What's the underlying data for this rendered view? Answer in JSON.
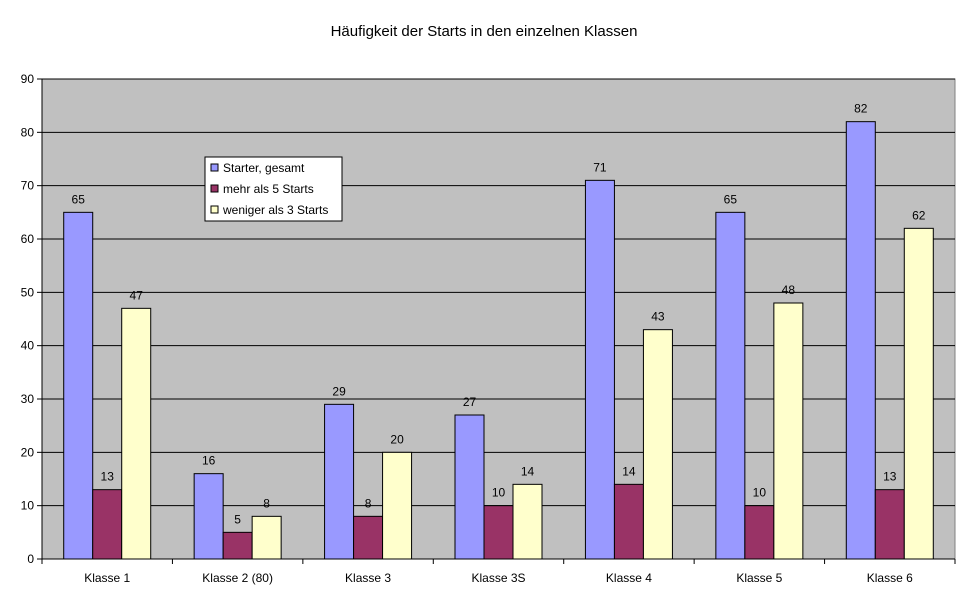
{
  "chart_data": {
    "type": "bar",
    "title": "Häufigkeit der Starts in den einzelnen Klassen",
    "xlabel": "",
    "ylabel": "",
    "ylim": [
      0,
      90
    ],
    "yticks": [
      0,
      10,
      20,
      30,
      40,
      50,
      60,
      70,
      80,
      90
    ],
    "grid": true,
    "legend_position": "top-left, inside plot",
    "categories": [
      "Klasse 1",
      "Klasse 2 (80)",
      "Klasse 3",
      "Klasse 3S",
      "Klasse 4",
      "Klasse 5",
      "Klasse 6"
    ],
    "series": [
      {
        "name": "Starter, gesamt",
        "color": "#9999ff",
        "values": [
          65,
          16,
          29,
          27,
          71,
          65,
          82
        ]
      },
      {
        "name": "mehr als 5 Starts",
        "color": "#993366",
        "values": [
          13,
          5,
          8,
          10,
          14,
          10,
          13
        ]
      },
      {
        "name": "weniger als 3 Starts",
        "color": "#ffffcc",
        "values": [
          47,
          8,
          20,
          14,
          43,
          48,
          62
        ]
      }
    ],
    "plot_background": "#c0c0c0"
  }
}
